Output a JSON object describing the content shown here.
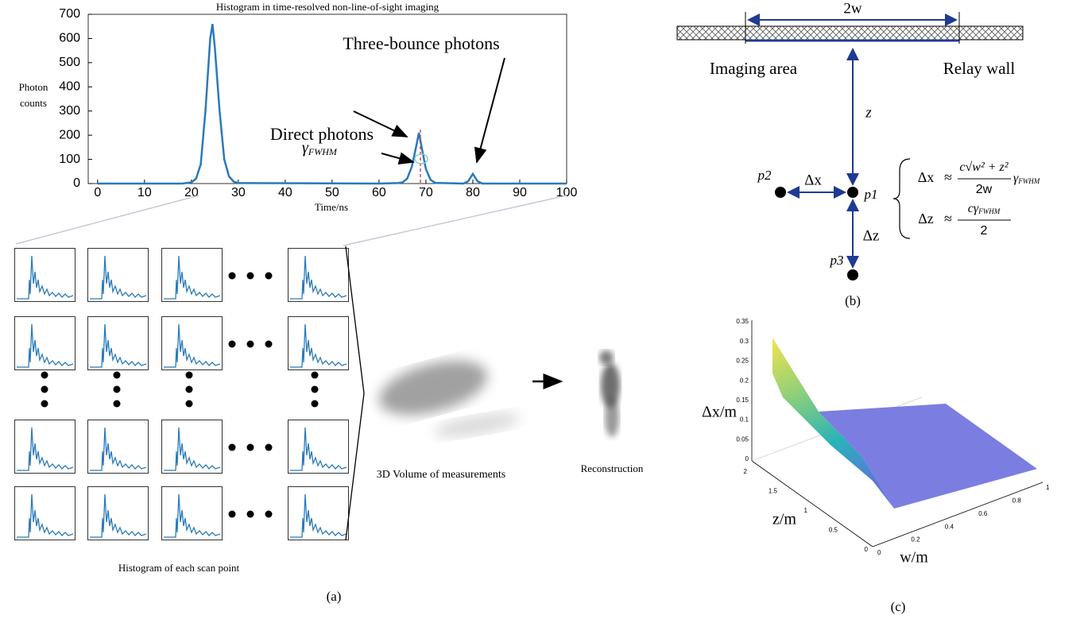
{
  "chart_data": {
    "type": "line",
    "title": "Histogram in time-resolved non-line-of-sight imaging",
    "xlabel": "Time/ns",
    "ylabel": [
      "Photon",
      "counts"
    ],
    "x": [
      0,
      18,
      20,
      21,
      22,
      23,
      24,
      24.5,
      25,
      26,
      27,
      28,
      29,
      30,
      60,
      64,
      65,
      66,
      67,
      68,
      68.5,
      69,
      70,
      71,
      72,
      78,
      79,
      80,
      81,
      82,
      100
    ],
    "values": [
      0,
      0,
      5,
      20,
      80,
      300,
      600,
      660,
      560,
      300,
      100,
      30,
      8,
      2,
      0,
      2,
      5,
      20,
      70,
      160,
      210,
      160,
      60,
      15,
      3,
      0,
      10,
      40,
      10,
      0,
      0
    ],
    "color": "#2a7ab9",
    "xlim": [
      -2,
      100
    ],
    "xticks": [
      0,
      10,
      20,
      30,
      40,
      50,
      60,
      70,
      80,
      90,
      100
    ],
    "ylim": [
      0,
      700
    ],
    "yticks": [
      0,
      100,
      200,
      300,
      400,
      500,
      600,
      700
    ],
    "annotations": {
      "direct": "Direct photons",
      "three_bounce": "Three-bounce photons",
      "gamma": {
        "symbol": "γ",
        "subscript": "FWHM"
      }
    }
  },
  "panel_a": {
    "grid_caption": "Histogram of each scan point",
    "volume_caption": "3D Volume of measurements",
    "reconstruction_caption": "Reconstruction",
    "label": "(a)"
  },
  "panel_b": {
    "width_label": "2w",
    "imaging_area": "Imaging area",
    "relay_wall": "Relay wall",
    "depth_label": "z",
    "points": [
      "p1",
      "p2",
      "p3"
    ],
    "dx_label": "Δx",
    "dz_label": "Δz",
    "equations": [
      {
        "lhs": "Δx",
        "relation": "≈",
        "numerator": "c√w² + z²",
        "denominator": "2w",
        "factor": "γ",
        "factor_subscript": "FWHM"
      },
      {
        "lhs": "Δz",
        "relation": "≈",
        "numerator": "cγ",
        "numerator_subscript": "FWHM",
        "denominator": "2"
      }
    ],
    "label": "(b)"
  },
  "panel_c": {
    "dx_axis_label": "Δx/m",
    "z_axis_label": "z/m",
    "w_axis_label": "w/m",
    "dx_ticks": [
      0,
      0.05,
      0.1,
      0.15,
      0.2,
      0.25,
      0.3,
      0.35
    ],
    "z_ticks": [
      0,
      0.5,
      1,
      1.5,
      2
    ],
    "w_ticks": [
      0,
      0.2,
      0.4,
      0.6,
      0.8,
      1
    ],
    "label": "(c)"
  }
}
